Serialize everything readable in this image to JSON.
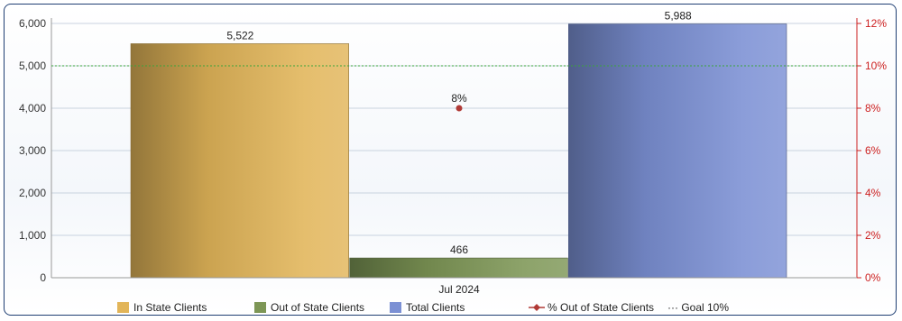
{
  "chart_data": {
    "type": "bar",
    "categories": [
      "Jul 2024"
    ],
    "series": [
      {
        "name": "In State Clients",
        "values": [
          5522
        ],
        "color": "#e2b559"
      },
      {
        "name": "Out of State Clients",
        "values": [
          466
        ],
        "color": "#7d9656"
      },
      {
        "name": "Total Clients",
        "values": [
          5988
        ],
        "color": "#7b90d4"
      }
    ],
    "line_series": [
      {
        "name": "% Out of State Clients",
        "values": [
          8
        ],
        "axis": "right",
        "color": "#b03a36"
      }
    ],
    "reference_line": {
      "name": "Goal 10%",
      "value": 10,
      "axis": "right",
      "color": "#3aa53a"
    },
    "ylim": [
      0,
      6000
    ],
    "y_ticks": [
      "0",
      "1,000",
      "2,000",
      "3,000",
      "4,000",
      "5,000",
      "6,000"
    ],
    "y2lim": [
      0,
      12
    ],
    "y2_ticks": [
      "0%",
      "2%",
      "4%",
      "6%",
      "8%",
      "10%",
      "12%"
    ],
    "data_labels": [
      "5,522",
      "466",
      "5,988"
    ],
    "line_data_labels": [
      "8%"
    ],
    "grid": true,
    "legend_position": "bottom"
  },
  "legend": {
    "item1": "In State Clients",
    "item2": "Out of State Clients",
    "item3": "Total Clients",
    "item4": "% Out of State Clients",
    "item5": "··· Goal 10%"
  }
}
